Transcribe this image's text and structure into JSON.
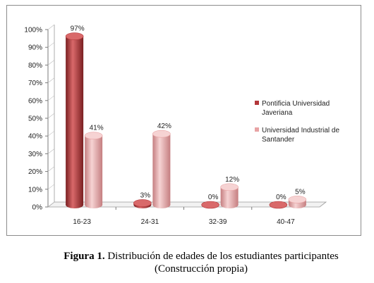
{
  "chart_data": {
    "type": "bar",
    "categories": [
      "16-23",
      "24-31",
      "32-39",
      "40-47"
    ],
    "series": [
      {
        "name": "Pontificia Universidad Javeriana",
        "values": [
          97,
          3,
          0,
          0
        ],
        "labels": [
          "97%",
          "3%",
          "0%",
          "0%"
        ]
      },
      {
        "name": "Universidad Industrial de Santander",
        "values": [
          41,
          42,
          12,
          5
        ],
        "labels": [
          "41%",
          "42%",
          "12%",
          "5%"
        ]
      }
    ],
    "yticks": [
      "0%",
      "10%",
      "20%",
      "30%",
      "40%",
      "50%",
      "60%",
      "70%",
      "80%",
      "90%",
      "100%"
    ],
    "ylim": [
      0,
      100
    ],
    "legend_position": "right",
    "colors": {
      "series1": "#b3373a",
      "series1_dark": "#7a1f21",
      "series1_light": "#d9696a",
      "series2": "#e8a3a4",
      "series2_dark": "#c57e80",
      "series2_light": "#f6d3d3"
    }
  },
  "caption": {
    "bold": "Figura 1.",
    "line1": " Distribución de edades de los estudiantes participantes",
    "line2": "(Construcción propia)"
  }
}
